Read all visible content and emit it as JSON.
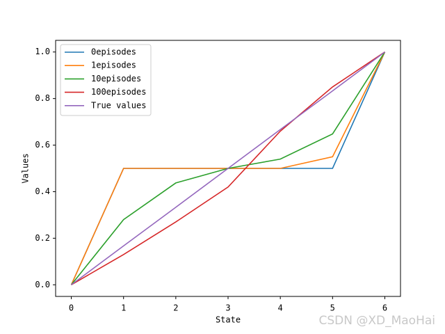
{
  "chart_data": {
    "type": "line",
    "xlabel": "State",
    "ylabel": "Values",
    "x": [
      0,
      1,
      2,
      3,
      4,
      5,
      6
    ],
    "series": [
      {
        "name": "0episodes",
        "color": "#1f77b4",
        "values": [
          0,
          0.5,
          0.5,
          0.5,
          0.5,
          0.5,
          1
        ]
      },
      {
        "name": "1episodes",
        "color": "#ff7f0e",
        "values": [
          0,
          0.5,
          0.5,
          0.5,
          0.5,
          0.55,
          1
        ]
      },
      {
        "name": "10episodes",
        "color": "#2ca02c",
        "values": [
          0,
          0.28,
          0.4375,
          0.5,
          0.54,
          0.648,
          1
        ]
      },
      {
        "name": "100episodes",
        "color": "#d62728",
        "values": [
          0,
          0.13,
          0.27,
          0.42,
          0.66,
          0.85,
          1
        ]
      },
      {
        "name": "True values",
        "color": "#9467bd",
        "values": [
          0,
          0.167,
          0.333,
          0.5,
          0.667,
          0.833,
          1
        ]
      }
    ],
    "xlim": [
      -0.3,
      6.3
    ],
    "ylim": [
      -0.05,
      1.05
    ],
    "xticks": [
      0,
      1,
      2,
      3,
      4,
      5,
      6
    ],
    "yticks": [
      {
        "value": 0,
        "label": "0.0"
      },
      {
        "value": 0.2,
        "label": "0.2"
      },
      {
        "value": 0.4,
        "label": "0.4"
      },
      {
        "value": 0.6,
        "label": "0.6"
      },
      {
        "value": 0.8,
        "label": "0.8"
      },
      {
        "value": 1,
        "label": "1.0"
      }
    ],
    "legend": "upper left",
    "grid": false,
    "watermark": "CSDN @XD_MaoHai"
  }
}
